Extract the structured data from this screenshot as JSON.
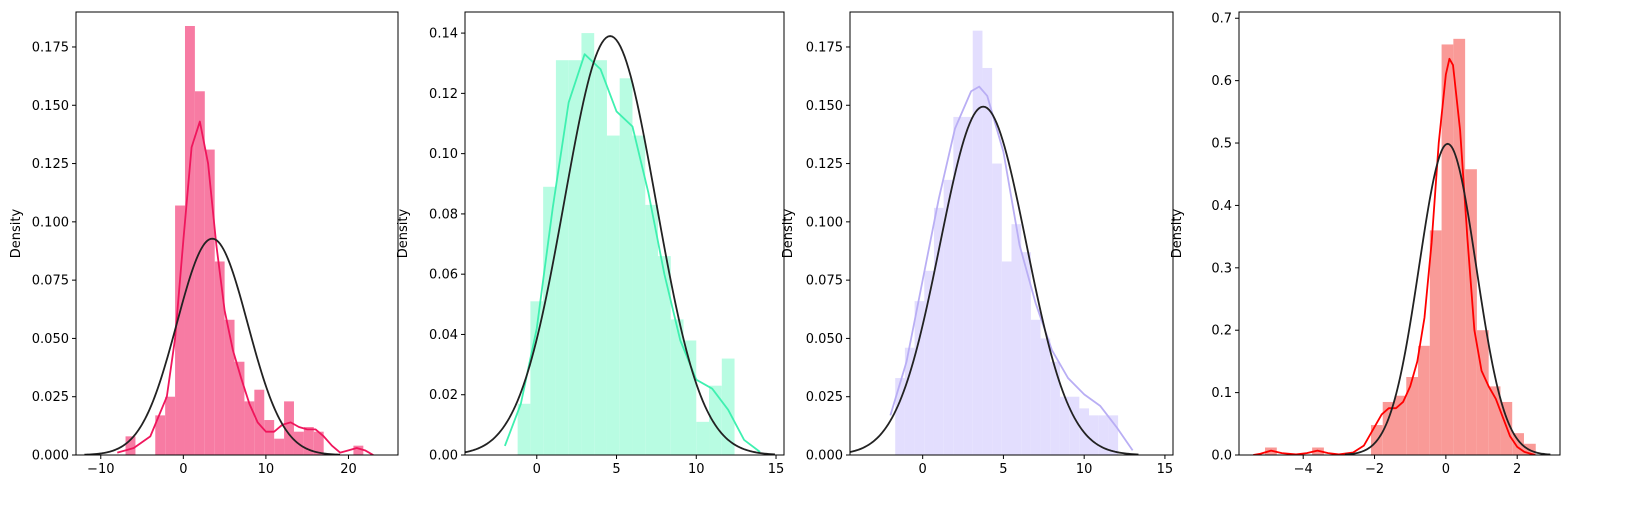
{
  "figure": {
    "chart_data": [
      {
        "type": "histogram",
        "ylabel": "Density",
        "xlim": [
          -13,
          26
        ],
        "ylim": [
          0,
          0.19
        ],
        "xticks": [
          -10,
          0,
          10,
          20
        ],
        "yticks": [
          0.0,
          0.025,
          0.05,
          0.075,
          0.1,
          0.125,
          0.15,
          0.175
        ],
        "ytick_labels": [
          "0.000",
          "0.025",
          "0.050",
          "0.075",
          "0.100",
          "0.125",
          "0.150",
          "0.175"
        ],
        "bar_color": "#f77ba3",
        "kde_color": "#ef165c",
        "normal_color": "#222222",
        "bins": [
          {
            "x0": -7.0,
            "x1": -5.8,
            "h": 0.008
          },
          {
            "x0": -5.8,
            "x1": -4.6,
            "h": 0.0
          },
          {
            "x0": -4.6,
            "x1": -3.4,
            "h": 0.0
          },
          {
            "x0": -3.4,
            "x1": -2.2,
            "h": 0.017
          },
          {
            "x0": -2.2,
            "x1": -1.0,
            "h": 0.025
          },
          {
            "x0": -1.0,
            "x1": 0.2,
            "h": 0.107
          },
          {
            "x0": 0.2,
            "x1": 1.4,
            "h": 0.184
          },
          {
            "x0": 1.4,
            "x1": 2.6,
            "h": 0.156
          },
          {
            "x0": 2.6,
            "x1": 3.8,
            "h": 0.131
          },
          {
            "x0": 3.8,
            "x1": 5.0,
            "h": 0.083
          },
          {
            "x0": 5.0,
            "x1": 6.2,
            "h": 0.058
          },
          {
            "x0": 6.2,
            "x1": 7.4,
            "h": 0.04
          },
          {
            "x0": 7.4,
            "x1": 8.6,
            "h": 0.023
          },
          {
            "x0": 8.6,
            "x1": 9.8,
            "h": 0.028
          },
          {
            "x0": 9.8,
            "x1": 11.0,
            "h": 0.015
          },
          {
            "x0": 11.0,
            "x1": 12.2,
            "h": 0.007
          },
          {
            "x0": 12.2,
            "x1": 13.4,
            "h": 0.023
          },
          {
            "x0": 13.4,
            "x1": 14.6,
            "h": 0.01
          },
          {
            "x0": 14.6,
            "x1": 15.8,
            "h": 0.012
          },
          {
            "x0": 15.8,
            "x1": 17.0,
            "h": 0.01
          },
          {
            "x0": 17.0,
            "x1": 18.2,
            "h": 0.0
          },
          {
            "x0": 18.2,
            "x1": 19.4,
            "h": 0.0
          },
          {
            "x0": 19.4,
            "x1": 20.6,
            "h": 0.0
          },
          {
            "x0": 20.6,
            "x1": 21.8,
            "h": 0.004
          }
        ],
        "kde": [
          [
            -8,
            0.001
          ],
          [
            -6,
            0.003
          ],
          [
            -4,
            0.008
          ],
          [
            -2,
            0.025
          ],
          [
            -1,
            0.05
          ],
          [
            0,
            0.092
          ],
          [
            1,
            0.132
          ],
          [
            2,
            0.143
          ],
          [
            3,
            0.125
          ],
          [
            4,
            0.09
          ],
          [
            5,
            0.062
          ],
          [
            6,
            0.045
          ],
          [
            7,
            0.033
          ],
          [
            8,
            0.022
          ],
          [
            9,
            0.014
          ],
          [
            10,
            0.01
          ],
          [
            11,
            0.01
          ],
          [
            12,
            0.013
          ],
          [
            13,
            0.014
          ],
          [
            14,
            0.012
          ],
          [
            15,
            0.011
          ],
          [
            16,
            0.011
          ],
          [
            17,
            0.008
          ],
          [
            18,
            0.004
          ],
          [
            19,
            0.001
          ],
          [
            20,
            0.002
          ],
          [
            21,
            0.003
          ],
          [
            22,
            0.002
          ],
          [
            23,
            0.0
          ]
        ],
        "normal": {
          "mean": 3.5,
          "sd": 4.3
        }
      },
      {
        "type": "histogram",
        "ylabel": "Density",
        "xlim": [
          -4.5,
          15.5
        ],
        "ylim": [
          0,
          0.147
        ],
        "xticks": [
          0,
          5,
          10,
          15
        ],
        "yticks": [
          0.0,
          0.02,
          0.04,
          0.06,
          0.08,
          0.1,
          0.12,
          0.14
        ],
        "ytick_labels": [
          "0.00",
          "0.02",
          "0.04",
          "0.06",
          "0.08",
          "0.10",
          "0.12",
          "0.14"
        ],
        "bar_color": "#b8fce2",
        "kde_color": "#3ff0b0",
        "normal_color": "#222222",
        "bins": [
          {
            "x0": -1.2,
            "x1": -0.4,
            "h": 0.017
          },
          {
            "x0": -0.4,
            "x1": 0.4,
            "h": 0.051
          },
          {
            "x0": 0.4,
            "x1": 1.2,
            "h": 0.089
          },
          {
            "x0": 1.2,
            "x1": 2.0,
            "h": 0.131
          },
          {
            "x0": 2.0,
            "x1": 2.8,
            "h": 0.131
          },
          {
            "x0": 2.8,
            "x1": 3.6,
            "h": 0.14
          },
          {
            "x0": 3.6,
            "x1": 4.4,
            "h": 0.131
          },
          {
            "x0": 4.4,
            "x1": 5.2,
            "h": 0.106
          },
          {
            "x0": 5.2,
            "x1": 6.0,
            "h": 0.125
          },
          {
            "x0": 6.0,
            "x1": 6.8,
            "h": 0.106
          },
          {
            "x0": 6.8,
            "x1": 7.6,
            "h": 0.083
          },
          {
            "x0": 7.6,
            "x1": 8.4,
            "h": 0.066
          },
          {
            "x0": 8.4,
            "x1": 9.2,
            "h": 0.045
          },
          {
            "x0": 9.2,
            "x1": 10.0,
            "h": 0.038
          },
          {
            "x0": 10.0,
            "x1": 10.8,
            "h": 0.011
          },
          {
            "x0": 10.8,
            "x1": 11.6,
            "h": 0.023
          },
          {
            "x0": 11.6,
            "x1": 12.4,
            "h": 0.032
          }
        ],
        "kde": [
          [
            -2,
            0.003
          ],
          [
            -1,
            0.017
          ],
          [
            0,
            0.042
          ],
          [
            1,
            0.082
          ],
          [
            2,
            0.117
          ],
          [
            3,
            0.133
          ],
          [
            4,
            0.128
          ],
          [
            5,
            0.114
          ],
          [
            6,
            0.109
          ],
          [
            7,
            0.087
          ],
          [
            8,
            0.06
          ],
          [
            9,
            0.038
          ],
          [
            10,
            0.025
          ],
          [
            11,
            0.022
          ],
          [
            12,
            0.015
          ],
          [
            13,
            0.005
          ],
          [
            14,
            0.001
          ]
        ],
        "normal": {
          "mean": 4.6,
          "sd": 2.87
        }
      },
      {
        "type": "histogram",
        "ylabel": "Density",
        "xlim": [
          -4.5,
          15.5
        ],
        "ylim": [
          0,
          0.19
        ],
        "xticks": [
          0,
          5,
          10,
          15
        ],
        "yticks": [
          0.0,
          0.025,
          0.05,
          0.075,
          0.1,
          0.125,
          0.15,
          0.175
        ],
        "ytick_labels": [
          "0.000",
          "0.025",
          "0.050",
          "0.075",
          "0.100",
          "0.125",
          "0.150",
          "0.175"
        ],
        "bar_color": "#e3defe",
        "kde_color": "#b9aef4",
        "normal_color": "#222222",
        "bins": [
          {
            "x0": -1.7,
            "x1": -1.1,
            "h": 0.033
          },
          {
            "x0": -1.1,
            "x1": -0.5,
            "h": 0.046
          },
          {
            "x0": -0.5,
            "x1": 0.1,
            "h": 0.066
          },
          {
            "x0": 0.1,
            "x1": 0.7,
            "h": 0.079
          },
          {
            "x0": 0.7,
            "x1": 1.3,
            "h": 0.106
          },
          {
            "x0": 1.3,
            "x1": 1.9,
            "h": 0.118
          },
          {
            "x0": 1.9,
            "x1": 2.5,
            "h": 0.145
          },
          {
            "x0": 2.5,
            "x1": 3.1,
            "h": 0.145
          },
          {
            "x0": 3.1,
            "x1": 3.7,
            "h": 0.182
          },
          {
            "x0": 3.7,
            "x1": 4.3,
            "h": 0.166
          },
          {
            "x0": 4.3,
            "x1": 4.9,
            "h": 0.125
          },
          {
            "x0": 4.9,
            "x1": 5.5,
            "h": 0.083
          },
          {
            "x0": 5.5,
            "x1": 6.1,
            "h": 0.099
          },
          {
            "x0": 6.1,
            "x1": 6.7,
            "h": 0.087
          },
          {
            "x0": 6.7,
            "x1": 7.3,
            "h": 0.058
          },
          {
            "x0": 7.3,
            "x1": 7.9,
            "h": 0.05
          },
          {
            "x0": 7.9,
            "x1": 8.5,
            "h": 0.04
          },
          {
            "x0": 8.5,
            "x1": 9.1,
            "h": 0.025
          },
          {
            "x0": 9.1,
            "x1": 9.7,
            "h": 0.025
          },
          {
            "x0": 9.7,
            "x1": 10.3,
            "h": 0.02
          },
          {
            "x0": 10.3,
            "x1": 10.9,
            "h": 0.017
          },
          {
            "x0": 10.9,
            "x1": 11.5,
            "h": 0.017
          },
          {
            "x0": 11.5,
            "x1": 12.1,
            "h": 0.017
          }
        ],
        "kde": [
          [
            -2,
            0.017
          ],
          [
            -1,
            0.04
          ],
          [
            0,
            0.075
          ],
          [
            1,
            0.11
          ],
          [
            2,
            0.14
          ],
          [
            3,
            0.156
          ],
          [
            3.5,
            0.158
          ],
          [
            4,
            0.154
          ],
          [
            5,
            0.13
          ],
          [
            6,
            0.09
          ],
          [
            7,
            0.065
          ],
          [
            8,
            0.045
          ],
          [
            9,
            0.033
          ],
          [
            10,
            0.026
          ],
          [
            11,
            0.021
          ],
          [
            12,
            0.012
          ],
          [
            13,
            0.002
          ]
        ],
        "normal": {
          "mean": 3.75,
          "sd": 2.67
        }
      },
      {
        "type": "histogram",
        "ylabel": "Density",
        "xlim": [
          -5.8,
          3.2
        ],
        "ylim": [
          0,
          0.71
        ],
        "xticks": [
          -4,
          -2,
          0,
          2
        ],
        "yticks": [
          0.0,
          0.1,
          0.2,
          0.3,
          0.4,
          0.5,
          0.6,
          0.7
        ],
        "ytick_labels": [
          "0.0",
          "0.1",
          "0.2",
          "0.3",
          "0.4",
          "0.5",
          "0.6",
          "0.7"
        ],
        "bar_color": "#f99a97",
        "kde_color": "#ff0000",
        "normal_color": "#222222",
        "bins": [
          {
            "x0": -5.07,
            "x1": -4.74,
            "h": 0.012
          },
          {
            "x0": -4.74,
            "x1": -4.41,
            "h": 0.0
          },
          {
            "x0": -4.41,
            "x1": -4.08,
            "h": 0.0
          },
          {
            "x0": -4.08,
            "x1": -3.75,
            "h": 0.0
          },
          {
            "x0": -3.75,
            "x1": -3.42,
            "h": 0.012
          },
          {
            "x0": -3.42,
            "x1": -3.09,
            "h": 0.0
          },
          {
            "x0": -3.09,
            "x1": -2.76,
            "h": 0.0
          },
          {
            "x0": -2.76,
            "x1": -2.43,
            "h": 0.0
          },
          {
            "x0": -2.43,
            "x1": -2.1,
            "h": 0.0
          },
          {
            "x0": -2.1,
            "x1": -1.77,
            "h": 0.048
          },
          {
            "x0": -1.77,
            "x1": -1.44,
            "h": 0.085
          },
          {
            "x0": -1.44,
            "x1": -1.11,
            "h": 0.095
          },
          {
            "x0": -1.11,
            "x1": -0.78,
            "h": 0.125
          },
          {
            "x0": -0.78,
            "x1": -0.45,
            "h": 0.175
          },
          {
            "x0": -0.45,
            "x1": -0.12,
            "h": 0.36
          },
          {
            "x0": -0.12,
            "x1": 0.21,
            "h": 0.658
          },
          {
            "x0": 0.21,
            "x1": 0.54,
            "h": 0.667
          },
          {
            "x0": 0.54,
            "x1": 0.87,
            "h": 0.458
          },
          {
            "x0": 0.87,
            "x1": 1.2,
            "h": 0.2
          },
          {
            "x0": 1.2,
            "x1": 1.53,
            "h": 0.11
          },
          {
            "x0": 1.53,
            "x1": 1.86,
            "h": 0.085
          },
          {
            "x0": 1.86,
            "x1": 2.19,
            "h": 0.035
          },
          {
            "x0": 2.19,
            "x1": 2.52,
            "h": 0.018
          }
        ],
        "kde": [
          [
            -5.4,
            0.0
          ],
          [
            -5.2,
            0.002
          ],
          [
            -4.9,
            0.007
          ],
          [
            -4.6,
            0.003
          ],
          [
            -4.2,
            0.001
          ],
          [
            -3.9,
            0.003
          ],
          [
            -3.6,
            0.007
          ],
          [
            -3.3,
            0.003
          ],
          [
            -3.0,
            0.001
          ],
          [
            -2.6,
            0.004
          ],
          [
            -2.3,
            0.015
          ],
          [
            -2.0,
            0.045
          ],
          [
            -1.8,
            0.065
          ],
          [
            -1.6,
            0.075
          ],
          [
            -1.4,
            0.075
          ],
          [
            -1.2,
            0.085
          ],
          [
            -1.0,
            0.11
          ],
          [
            -0.8,
            0.15
          ],
          [
            -0.6,
            0.22
          ],
          [
            -0.4,
            0.34
          ],
          [
            -0.2,
            0.5
          ],
          [
            0.0,
            0.61
          ],
          [
            0.1,
            0.635
          ],
          [
            0.2,
            0.625
          ],
          [
            0.4,
            0.52
          ],
          [
            0.6,
            0.35
          ],
          [
            0.8,
            0.2
          ],
          [
            1.0,
            0.135
          ],
          [
            1.2,
            0.11
          ],
          [
            1.4,
            0.09
          ],
          [
            1.6,
            0.06
          ],
          [
            1.8,
            0.03
          ],
          [
            2.0,
            0.013
          ],
          [
            2.2,
            0.005
          ],
          [
            2.5,
            0.0
          ]
        ],
        "normal": {
          "mean": 0.05,
          "sd": 0.8
        }
      }
    ]
  }
}
